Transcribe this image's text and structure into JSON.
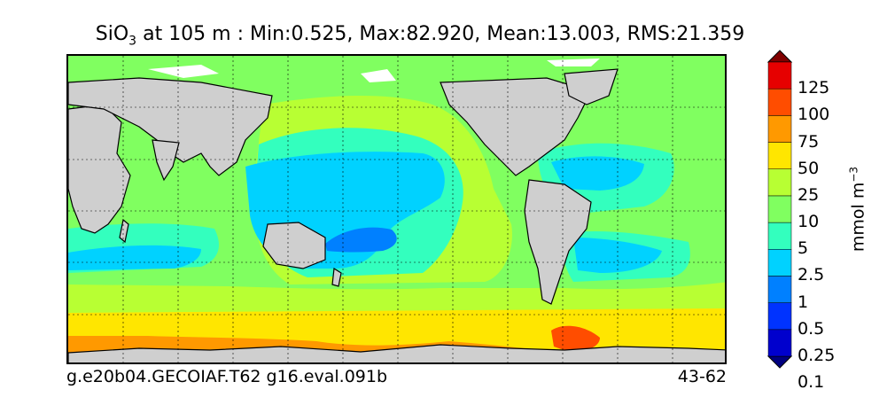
{
  "title": {
    "var_main": "SiO",
    "var_sub": "3",
    "rest": " at 105 m : Min:0.525, Max:82.920, Mean:13.003, RMS:21.359"
  },
  "footer": {
    "left": "g.e20b04.GECOIAF.T62 g16.eval.091b",
    "right": "43-62"
  },
  "colorbar": {
    "ticks": [
      "125",
      "100",
      "75",
      "50",
      "25",
      "10",
      "5",
      "2.5",
      "1",
      "0.5",
      "0.25",
      "0.1"
    ],
    "unit_main": "mmol m",
    "unit_sup": "−3",
    "colors": [
      "#000080",
      "#0000cd",
      "#0033ff",
      "#0080ff",
      "#00d2ff",
      "#33ffbe",
      "#80ff60",
      "#b8ff33",
      "#ffe600",
      "#ff9900",
      "#ff4d00",
      "#e60000",
      "#800000"
    ]
  },
  "map": {
    "land_color": "#cfcfcf",
    "grid": "dotted"
  }
}
